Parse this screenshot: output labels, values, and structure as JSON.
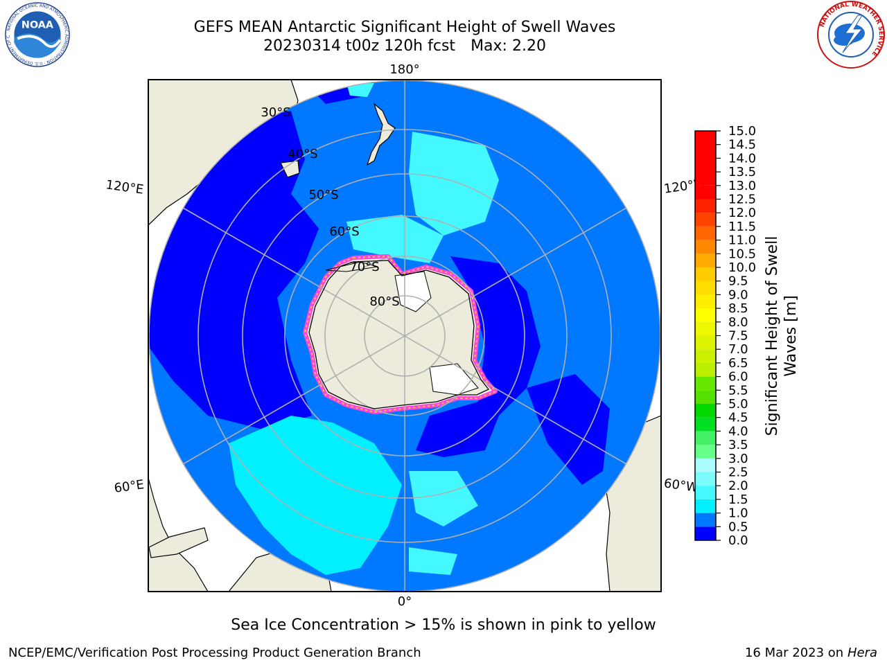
{
  "header": {
    "title_line1": "GEFS MEAN Antarctic Significant Height of Swell Waves",
    "title_run": "20230314 t00z 120h fcst",
    "title_max": "Max: 2.20"
  },
  "logos": {
    "left": "NOAA",
    "left_ring_text": "NATIONAL OCEANIC AND ATMOSPHERIC ADMINISTRATION · U.S. DEPARTMENT OF COMMERCE",
    "right_ring_text": "NATIONAL WEATHER SERVICE"
  },
  "map": {
    "projection": "south-polar-stereographic",
    "longitude_labels": [
      "180°",
      "120°E",
      "120°W",
      "60°E",
      "60°W",
      "0°"
    ],
    "latitude_labels": [
      "30°S",
      "40°S",
      "50°S",
      "60°S",
      "70°S",
      "80°S"
    ],
    "colors": {
      "land": "#ecebdc",
      "ice_white": "#ffffff",
      "ice_edge": "#ff44dd",
      "gridline": "#b0b0b0",
      "coastline": "#000000"
    }
  },
  "colorbar": {
    "label_line1": "Significant Height of Swell",
    "label_line2": "Waves [m]",
    "ticks": [
      "0.0",
      "0.5",
      "1.0",
      "1.5",
      "2.0",
      "2.5",
      "3.0",
      "3.5",
      "4.0",
      "4.5",
      "5.0",
      "5.5",
      "6.0",
      "6.5",
      "7.0",
      "7.5",
      "8.0",
      "8.5",
      "9.0",
      "9.5",
      "10.0",
      "10.5",
      "11.0",
      "11.5",
      "12.0",
      "12.5",
      "13.0",
      "13.5",
      "14.0",
      "14.5",
      "15.0"
    ],
    "bands": [
      {
        "from": 0.0,
        "to": 0.5,
        "color": "#0000ff"
      },
      {
        "from": 0.5,
        "to": 1.0,
        "color": "#0078ff"
      },
      {
        "from": 1.0,
        "to": 1.5,
        "color": "#00f0ff"
      },
      {
        "from": 1.5,
        "to": 2.0,
        "color": "#44f8ff"
      },
      {
        "from": 2.0,
        "to": 2.5,
        "color": "#7cfbfb"
      },
      {
        "from": 2.5,
        "to": 3.0,
        "color": "#aafbfb"
      },
      {
        "from": 3.0,
        "to": 3.5,
        "color": "#66ff88"
      },
      {
        "from": 3.5,
        "to": 4.0,
        "color": "#44f066"
      },
      {
        "from": 4.0,
        "to": 4.5,
        "color": "#00e020"
      },
      {
        "from": 4.5,
        "to": 5.0,
        "color": "#00d800"
      },
      {
        "from": 5.0,
        "to": 5.5,
        "color": "#55e000"
      },
      {
        "from": 5.5,
        "to": 6.0,
        "color": "#66e800"
      },
      {
        "from": 6.0,
        "to": 6.5,
        "color": "#bbee00"
      },
      {
        "from": 6.5,
        "to": 7.0,
        "color": "#ccf000"
      },
      {
        "from": 7.0,
        "to": 7.5,
        "color": "#ddf400"
      },
      {
        "from": 7.5,
        "to": 8.0,
        "color": "#eef800"
      },
      {
        "from": 8.0,
        "to": 8.5,
        "color": "#ffff00"
      },
      {
        "from": 8.5,
        "to": 9.0,
        "color": "#ffee00"
      },
      {
        "from": 9.0,
        "to": 9.5,
        "color": "#ffdd00"
      },
      {
        "from": 9.5,
        "to": 10.0,
        "color": "#ffcc00"
      },
      {
        "from": 10.0,
        "to": 10.5,
        "color": "#ffaa00"
      },
      {
        "from": 10.5,
        "to": 11.0,
        "color": "#ff8800"
      },
      {
        "from": 11.0,
        "to": 11.5,
        "color": "#ff6600"
      },
      {
        "from": 11.5,
        "to": 12.0,
        "color": "#ff4400"
      },
      {
        "from": 12.0,
        "to": 12.5,
        "color": "#ff2200"
      },
      {
        "from": 12.5,
        "to": 13.0,
        "color": "#ff0000"
      }
    ]
  },
  "note": "Sea Ice Concentration > 15% is shown in pink to yellow",
  "footer": {
    "left": "NCEP/EMC/Verification Post Processing Product Generation Branch",
    "date": "16 Mar 2023 on",
    "host": "Hera"
  }
}
